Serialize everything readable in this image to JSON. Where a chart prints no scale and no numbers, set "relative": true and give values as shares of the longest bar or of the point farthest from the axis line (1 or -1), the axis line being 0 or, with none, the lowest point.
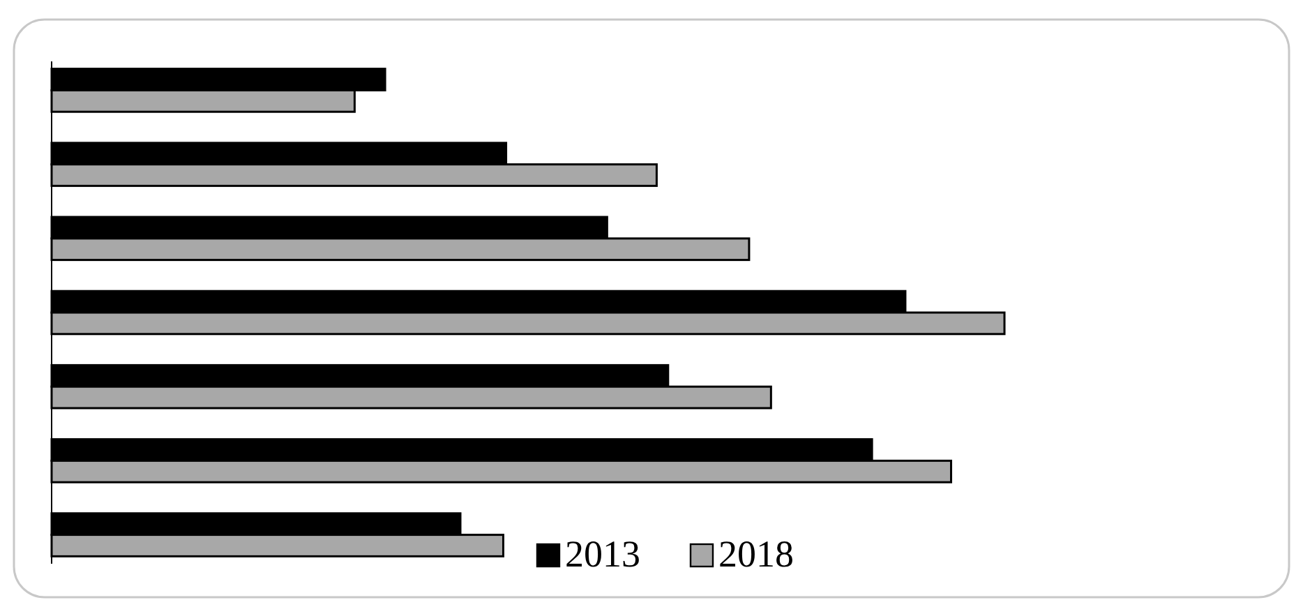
{
  "chart_data": {
    "type": "bar",
    "orientation": "horizontal",
    "relative": true,
    "legend": "bottom",
    "categories": [
      null,
      null,
      null,
      null,
      null,
      null,
      null
    ],
    "series": [
      {
        "name": "2013",
        "color": "#000000",
        "values": [
          0.35,
          0.477,
          0.583,
          0.896,
          0.647,
          0.861,
          0.429
        ]
      },
      {
        "name": "2018",
        "color": "#a8a8a8",
        "values": [
          0.318,
          0.635,
          0.732,
          1,
          0.755,
          0.944,
          0.474
        ]
      }
    ]
  }
}
